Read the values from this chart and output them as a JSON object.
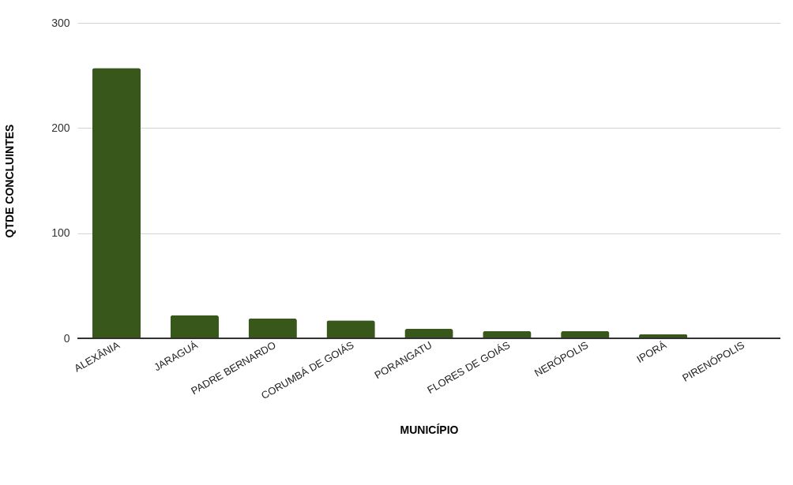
{
  "chart_data": {
    "type": "bar",
    "xlabel": "MUNICÍPIO",
    "ylabel": "QTDE CONCLUINTES",
    "categories": [
      "ALEXÂNIA",
      "JARAGUÁ",
      "PADRE BERNARDO",
      "CORUMBÁ DE GOIÁS",
      "PORANGATU",
      "FLORES DE GOIÁS",
      "NERÓPOLIS",
      "IPORÁ",
      "PIRENÓPOLIS"
    ],
    "values": [
      257,
      22,
      19,
      17,
      9,
      7,
      7,
      4,
      1
    ],
    "color": "#38571a",
    "ylim": [
      0,
      300
    ],
    "yticks": [
      0,
      100,
      200,
      300
    ],
    "grid": "y"
  }
}
